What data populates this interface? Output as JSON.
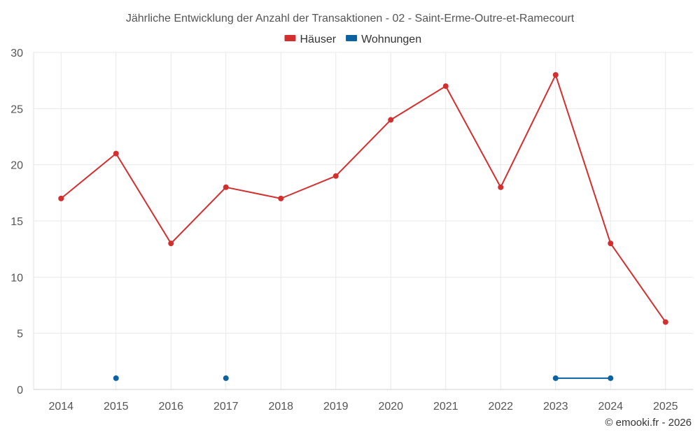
{
  "chart_data": {
    "type": "line",
    "title": "Jährliche Entwicklung der Anzahl der Transaktionen - 02 - Saint-Erme-Outre-et-Ramecourt",
    "xlabel": "",
    "ylabel": "",
    "categories": [
      "2014",
      "2015",
      "2016",
      "2017",
      "2018",
      "2019",
      "2020",
      "2021",
      "2022",
      "2023",
      "2024",
      "2025"
    ],
    "ylim": [
      0,
      30
    ],
    "yticks": [
      0,
      5,
      10,
      15,
      20,
      25,
      30
    ],
    "grid": true,
    "legend": "top-center",
    "series": [
      {
        "name": "Häuser",
        "color": "#d32f2f",
        "values": [
          17,
          21,
          13,
          18,
          17,
          19,
          24,
          27,
          18,
          28,
          13,
          6
        ]
      },
      {
        "name": "Wohnungen",
        "color": "#0a63a0",
        "values": [
          null,
          1,
          null,
          1,
          null,
          null,
          null,
          null,
          null,
          1,
          1,
          null
        ]
      }
    ]
  },
  "credit": "© emooki.fr - 2026"
}
